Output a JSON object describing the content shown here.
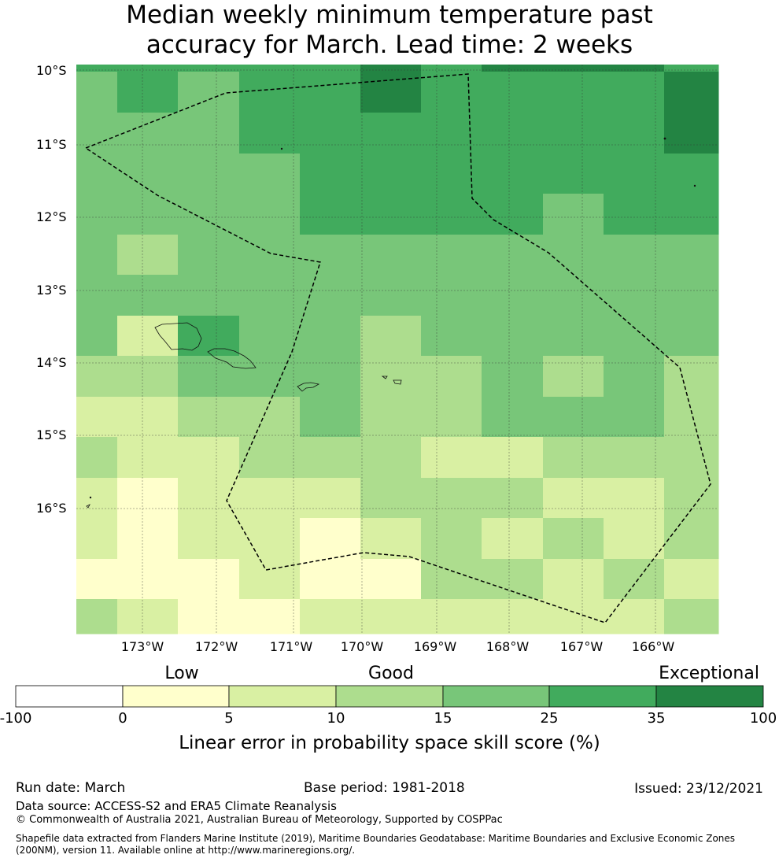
{
  "title_line1": "Median weekly minimum temperature past",
  "title_line2": "accuracy for March. Lead time: 2 weeks",
  "lat_labels": [
    "10°S",
    "11°S",
    "12°S",
    "13°S",
    "14°S",
    "15°S",
    "16°S"
  ],
  "lon_labels": [
    "173°W",
    "172°W",
    "171°W",
    "170°W",
    "169°W",
    "168°W",
    "167°W",
    "166°W"
  ],
  "colorbar": {
    "qualitative": [
      "Low",
      "Good",
      "Exceptional"
    ],
    "ticks": [
      "-100",
      "0",
      "5",
      "10",
      "15",
      "25",
      "35",
      "100"
    ],
    "colors": [
      "#ffffff",
      "#ffffcc",
      "#d9f0a3",
      "#addd8e",
      "#78c679",
      "#41ab5d",
      "#238443"
    ],
    "label": "Linear error in probability space skill score (%)"
  },
  "chart_data": {
    "type": "heatmap",
    "description_levels": "index into colorbar bins: 0=-100..0,1=0..5,2=5..10,3=10..15,4=15..25,5=25..35,6=35..100",
    "levels": [
      [
        5,
        5,
        5,
        5,
        5,
        6,
        5,
        6,
        6,
        6,
        5
      ],
      [
        4,
        5,
        4,
        5,
        5,
        6,
        5,
        5,
        5,
        5,
        6
      ],
      [
        4,
        4,
        4,
        5,
        5,
        5,
        5,
        5,
        5,
        5,
        6
      ],
      [
        4,
        4,
        4,
        4,
        5,
        5,
        5,
        5,
        5,
        5,
        5
      ],
      [
        4,
        4,
        4,
        4,
        5,
        5,
        5,
        5,
        4,
        5,
        5
      ],
      [
        4,
        3,
        4,
        4,
        4,
        4,
        4,
        4,
        4,
        4,
        4
      ],
      [
        4,
        4,
        4,
        4,
        4,
        4,
        4,
        4,
        4,
        4,
        4
      ],
      [
        4,
        2,
        5,
        4,
        4,
        3,
        4,
        4,
        4,
        4,
        4
      ],
      [
        3,
        3,
        4,
        4,
        4,
        3,
        3,
        4,
        3,
        4,
        3
      ],
      [
        2,
        2,
        3,
        3,
        4,
        3,
        3,
        4,
        4,
        4,
        3
      ],
      [
        3,
        2,
        2,
        3,
        3,
        3,
        2,
        2,
        3,
        3,
        3
      ],
      [
        2,
        1,
        2,
        2,
        2,
        3,
        3,
        3,
        2,
        2,
        3
      ],
      [
        2,
        1,
        2,
        2,
        1,
        2,
        3,
        2,
        3,
        2,
        3
      ],
      [
        1,
        1,
        1,
        2,
        1,
        1,
        3,
        3,
        2,
        3,
        2
      ],
      [
        3,
        2,
        1,
        1,
        2,
        2,
        2,
        2,
        2,
        2,
        3
      ]
    ]
  },
  "footer": {
    "run_date": "Run date: March",
    "base_period": "Base period: 1981-2018",
    "issued": "Issued: 23/12/2021",
    "data_source": "Data source: ACCESS-S2 and ERA5 Climate Reanalysis",
    "copyright": "© Commonwealth of Australia 2021, Australian Bureau of Meteorology, Supported by COSPPac",
    "shapefile1": "Shapefile data extracted from Flanders Marine Institute (2019), Maritime Boundaries Geodatabase: Maritime Boundaries and Exclusive Economic Zones",
    "shapefile2": "(200NM), version 11. Available online at http://www.marineregions.org/."
  }
}
